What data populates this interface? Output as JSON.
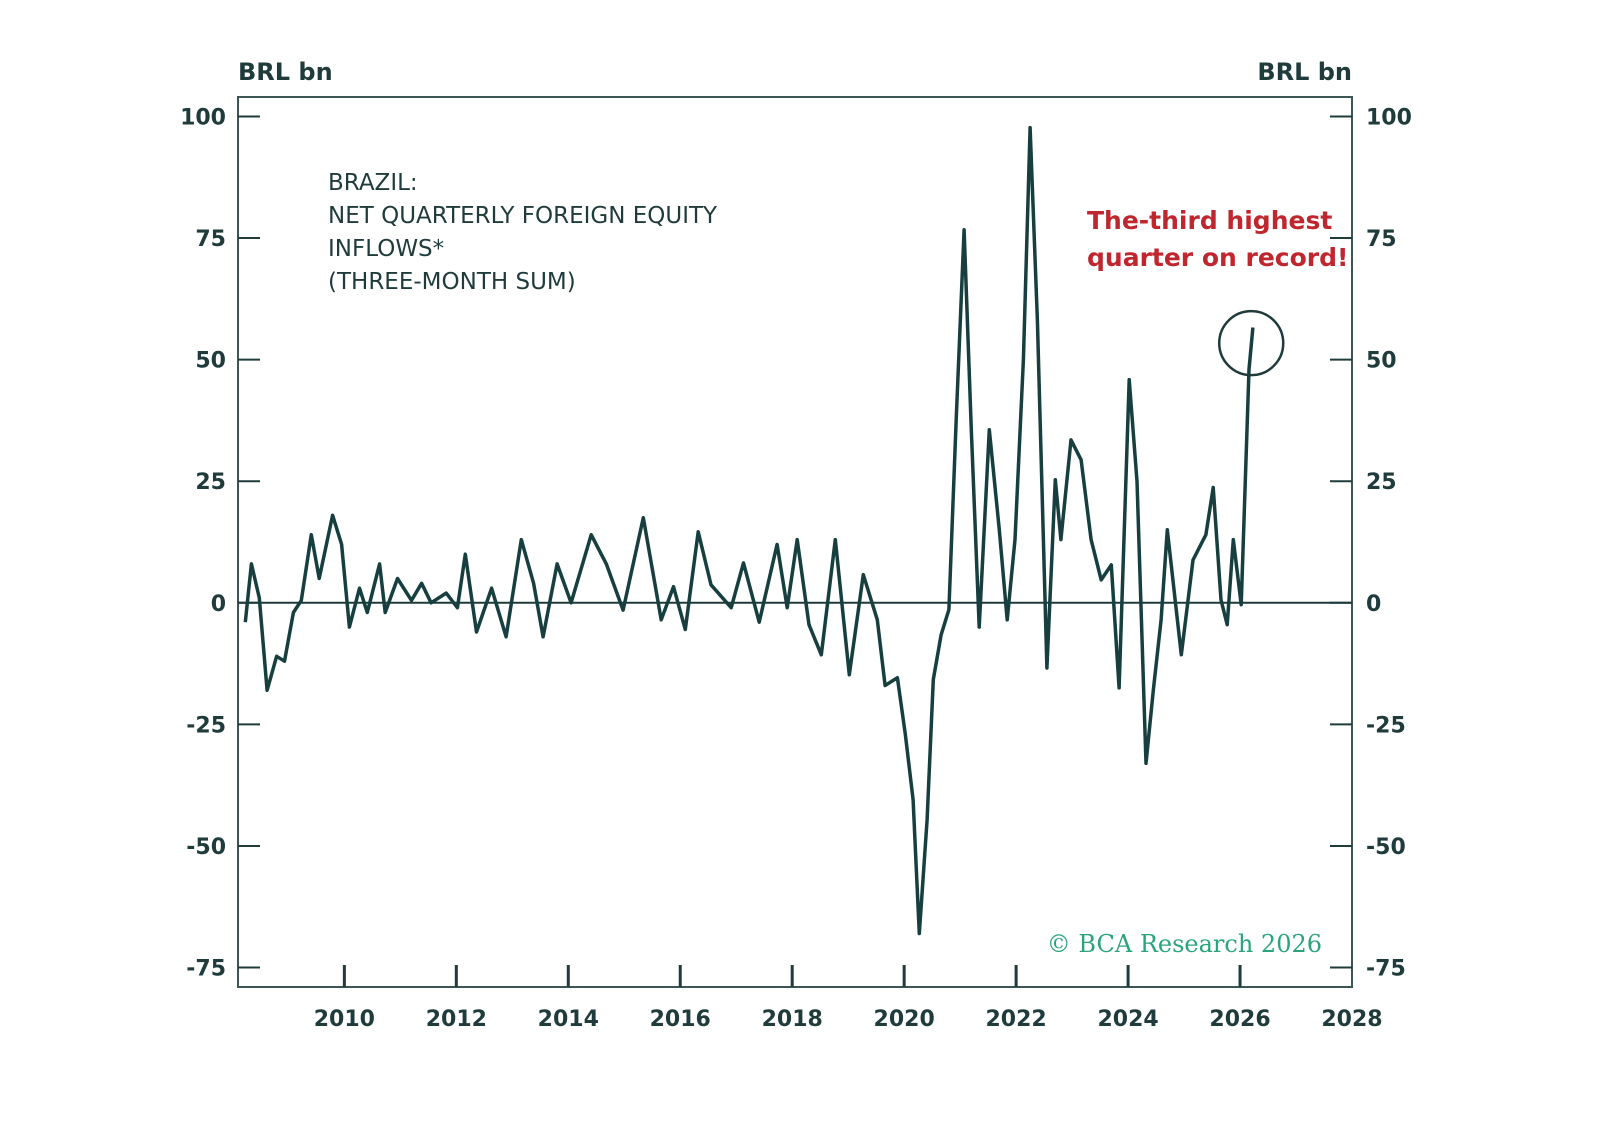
{
  "chart_data": {
    "type": "line",
    "title_lines": [
      "BRAZIL:",
      "NET QUARTERLY FOREIGN EQUITY",
      "INFLOWS*",
      "(THREE-MONTH SUM)"
    ],
    "ylabel_left": "BRL bn",
    "ylabel_right": "BRL bn",
    "xlim": [
      2008.1,
      2028
    ],
    "ylim": [
      -79,
      104
    ],
    "x_ticks": [
      2010,
      2012,
      2014,
      2016,
      2018,
      2020,
      2022,
      2024,
      2026,
      2028
    ],
    "x_tick_labels": [
      "2010",
      "2012",
      "2014",
      "2016",
      "2018",
      "2020",
      "2022",
      "2024",
      "2026",
      "2028"
    ],
    "y_ticks": [
      100,
      75,
      50,
      25,
      0,
      -25,
      -50,
      -75
    ],
    "y_tick_labels": [
      "100",
      "75",
      "50",
      "25",
      "0",
      "-25",
      "-50",
      "-75"
    ],
    "zero_line": true,
    "grid": false,
    "line_color": "#173f3f",
    "annotation": {
      "lines": [
        "The-third highest",
        "quarter on record!"
      ],
      "color": "#c0262d",
      "target_x": 2026.2,
      "target_y": 54
    },
    "copyright": "© BCA Research 2026",
    "copyright_color": "#2aa57a",
    "series": [
      {
        "x": [
          2008.23,
          2008.34,
          2008.48,
          2008.62,
          2008.79,
          2008.93,
          2009.09,
          2009.23,
          2009.41,
          2009.55,
          2009.79,
          2009.95,
          2010.09,
          2010.27,
          2010.41,
          2010.63,
          2010.73,
          2010.95,
          2011.2,
          2011.38,
          2011.55,
          2011.82,
          2012.02,
          2012.16,
          2012.36,
          2012.63,
          2012.89,
          2013.16,
          2013.38,
          2013.55,
          2013.8,
          2014.05,
          2014.41,
          2014.68,
          2014.98,
          2015.34,
          2015.66,
          2015.88,
          2016.09,
          2016.32,
          2016.55,
          2016.91,
          2017.13,
          2017.41,
          2017.73,
          2017.91,
          2018.09,
          2018.3,
          2018.52,
          2018.77,
          2019.02,
          2019.27,
          2019.52,
          2019.66,
          2019.88,
          2020.02,
          2020.16,
          2020.27,
          2020.41,
          2020.52,
          2020.66,
          2020.8,
          2020.93,
          2021.07,
          2021.2,
          2021.34,
          2021.52,
          2021.7,
          2021.84,
          2021.98,
          2022.13,
          2022.25,
          2022.38,
          2022.55,
          2022.7,
          2022.8,
          2022.98,
          2023.16,
          2023.34,
          2023.52,
          2023.7,
          2023.84,
          2024.02,
          2024.16,
          2024.32,
          2024.45,
          2024.59,
          2024.7,
          2024.95,
          2025.16,
          2025.39,
          2025.52,
          2025.66,
          2025.77,
          2025.88,
          2026.02,
          2026.16,
          2026.23
        ],
        "y": [
          -4,
          8,
          1,
          -18,
          -11,
          -12,
          -2,
          0.5,
          14,
          5,
          18,
          12,
          -5,
          3,
          -2,
          8,
          -2,
          5,
          0.5,
          4,
          0,
          2,
          -1,
          10,
          -6,
          3,
          -7,
          13,
          4,
          -7,
          8,
          0,
          14,
          8,
          -1.5,
          17.5,
          -3.5,
          3.3,
          -5.5,
          14.6,
          3.7,
          -1,
          8.2,
          -4,
          12,
          -1,
          13,
          -4.5,
          -10.7,
          13,
          -14.8,
          5.8,
          -3.5,
          -17,
          -15.4,
          -27,
          -40.5,
          -68,
          -44.6,
          -15.8,
          -6.6,
          -1.4,
          37.7,
          76.7,
          35.6,
          -5,
          35.6,
          15,
          -3.5,
          13,
          50,
          97.7,
          58,
          -13.4,
          25.3,
          13,
          33.5,
          29.4,
          13,
          4.7,
          7.8,
          -17.5,
          45.9,
          25,
          -33,
          -18,
          -3.5,
          15,
          -10.7,
          8.8,
          14,
          23.7,
          0.6,
          -4.5,
          13,
          -0.4,
          48,
          56.6
        ]
      }
    ]
  }
}
